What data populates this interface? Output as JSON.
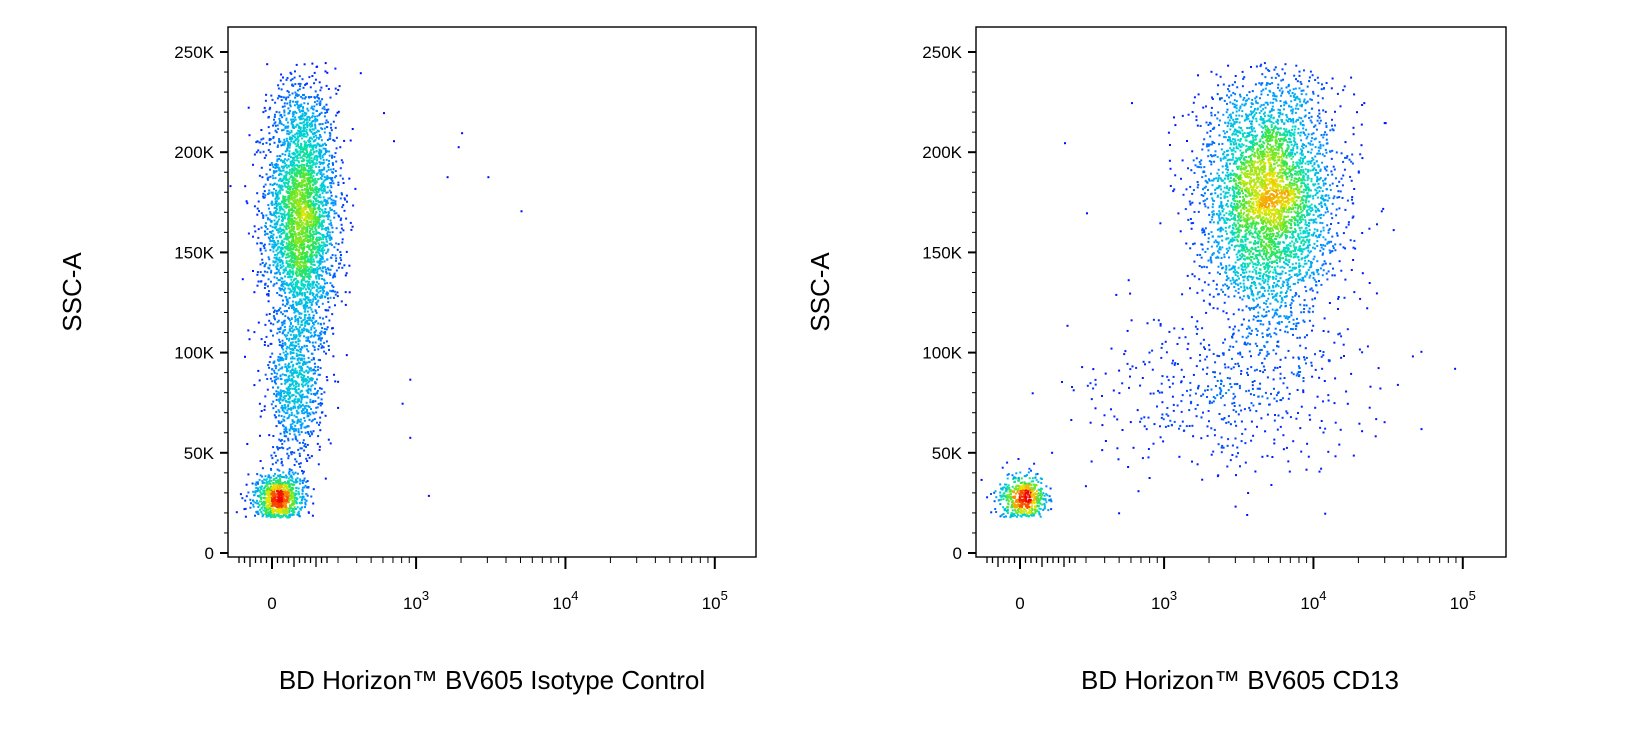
{
  "chart_data": [
    {
      "type": "scatter",
      "density_colored": true,
      "xlabel": "BD Horizon™ BV605 Isotype Control",
      "ylabel": "SSC-A",
      "x_scale": "biexponential",
      "x_ticks": [
        "0",
        "10^3",
        "10^4",
        "10^5"
      ],
      "y_ticks": [
        "0",
        "50K",
        "100K",
        "150K",
        "200K",
        "250K"
      ],
      "ylim": [
        0,
        262144
      ],
      "grid": false,
      "populations": [
        {
          "name": "",
          "x_center": 130,
          "y_center": 168000,
          "x_spread": 80,
          "y_spread": 33000,
          "share": 0.7
        },
        {
          "name": "",
          "x_center": 100,
          "y_center": 80000,
          "x_spread": 60,
          "y_spread": 17000,
          "share": 0.13
        },
        {
          "name": "",
          "x_center": 30,
          "y_center": 28000,
          "x_spread": 55,
          "y_spread": 6000,
          "share": 0.17
        }
      ],
      "outliers": [
        [
          600,
          220000
        ],
        [
          700,
          206000
        ],
        [
          1900,
          203000
        ],
        [
          2000,
          210000
        ],
        [
          1600,
          188000
        ],
        [
          3000,
          188000
        ],
        [
          5000,
          171000
        ],
        [
          900,
          87000
        ],
        [
          900,
          58000
        ],
        [
          800,
          75000
        ],
        [
          1200,
          29000
        ]
      ]
    },
    {
      "type": "scatter",
      "density_colored": true,
      "xlabel": "BD Horizon™ BV605 CD13",
      "ylabel": "SSC-A",
      "x_scale": "biexponential",
      "x_ticks": [
        "0",
        "10^3",
        "10^4",
        "10^5"
      ],
      "y_ticks": [
        "0",
        "50K",
        "100K",
        "150K",
        "200K",
        "250K"
      ],
      "ylim": [
        0,
        262144
      ],
      "grid": false,
      "populations": [
        {
          "name": "",
          "x_center": 5000,
          "y_center": 178000,
          "x_spread_log": 0.22,
          "y_spread": 30000,
          "share": 0.8
        },
        {
          "name": "",
          "x_center": 2500,
          "y_center": 80000,
          "x_spread_log": 0.45,
          "y_spread": 20000,
          "share": 0.1
        },
        {
          "name": "",
          "x_center": 10,
          "y_center": 28000,
          "x_spread": 55,
          "y_spread": 6000,
          "share": 0.1
        }
      ],
      "outliers": [
        [
          30000,
          215000
        ],
        [
          20000,
          65000
        ],
        [
          15000,
          62000
        ],
        [
          400,
          90000
        ],
        [
          200,
          205000
        ],
        [
          300,
          170000
        ],
        [
          600,
          225000
        ]
      ]
    }
  ]
}
